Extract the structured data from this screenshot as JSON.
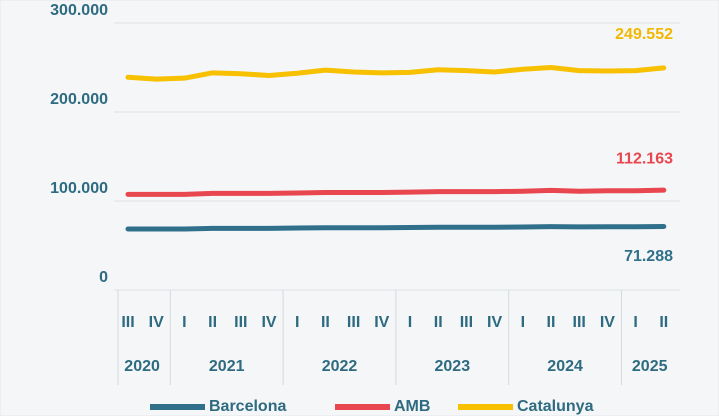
{
  "chart_data": {
    "type": "line",
    "years": [
      {
        "label": "2020",
        "quarters": [
          "III",
          "IV"
        ]
      },
      {
        "label": "2021",
        "quarters": [
          "I",
          "II",
          "III",
          "IV"
        ]
      },
      {
        "label": "2022",
        "quarters": [
          "I",
          "II",
          "III",
          "IV"
        ]
      },
      {
        "label": "2023",
        "quarters": [
          "I",
          "II",
          "III",
          "IV"
        ]
      },
      {
        "label": "2024",
        "quarters": [
          "I",
          "II",
          "III",
          "IV"
        ]
      },
      {
        "label": "2025",
        "quarters": [
          "I",
          "II"
        ]
      }
    ],
    "series": [
      {
        "name": "Barcelona",
        "color": "#31708a",
        "values": [
          68500,
          68500,
          68600,
          69200,
          69300,
          69300,
          69600,
          69900,
          70000,
          70000,
          70200,
          70500,
          70500,
          70500,
          70800,
          71200,
          70900,
          71000,
          71100,
          71288
        ],
        "value_labels": [
          null,
          null,
          null,
          null,
          null,
          null,
          null,
          null,
          null,
          null,
          null,
          null,
          null,
          null,
          null,
          null,
          null,
          null,
          null,
          "71.288"
        ]
      },
      {
        "name": "AMB",
        "color": "#e8474f",
        "values": [
          107500,
          107500,
          107500,
          108500,
          108500,
          108500,
          109000,
          109500,
          109500,
          109500,
          110000,
          110500,
          110500,
          110500,
          111000,
          112000,
          111000,
          111500,
          111500,
          112163
        ],
        "value_labels": [
          null,
          null,
          null,
          null,
          null,
          null,
          null,
          null,
          null,
          null,
          null,
          null,
          null,
          null,
          null,
          null,
          null,
          null,
          null,
          "112.163"
        ]
      },
      {
        "name": "Catalunya",
        "color": "#f7c000",
        "values": [
          239000,
          237000,
          238000,
          244000,
          243000,
          241000,
          243500,
          247000,
          245000,
          244000,
          244500,
          247500,
          246500,
          245000,
          248000,
          250000,
          246500,
          246000,
          246500,
          249552
        ],
        "value_labels": [
          null,
          null,
          null,
          null,
          null,
          null,
          null,
          null,
          null,
          null,
          null,
          null,
          null,
          null,
          null,
          null,
          null,
          null,
          null,
          "249.552"
        ]
      }
    ],
    "ylim": [
      0,
      300000
    ],
    "yticks": [
      0,
      {
        "value": 100000,
        "label": "100.000"
      },
      {
        "value": 200000,
        "label": "200.000"
      },
      {
        "value": 300000,
        "label": "300.000"
      }
    ],
    "grid": true,
    "legend": "bottom"
  }
}
